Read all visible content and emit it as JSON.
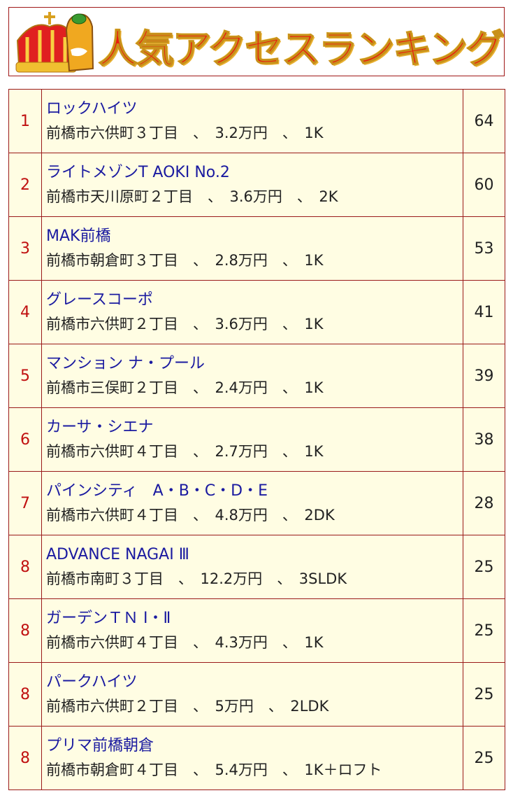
{
  "banner": {
    "title": "人気アクセスランキング"
  },
  "colors": {
    "border": "#9a1a1a",
    "row_bg": "#fffde3",
    "rank": "#c01010",
    "name_link": "#1a1aa0"
  },
  "rows": [
    {
      "rank": "1",
      "name": "ロックハイツ",
      "address": "前橋市六供町３丁目",
      "price": "3.2万円",
      "layout": "1K",
      "count": "64"
    },
    {
      "rank": "2",
      "name": "ライトメゾンT AOKI No.2",
      "address": "前橋市天川原町２丁目",
      "price": "3.6万円",
      "layout": "2K",
      "count": "60"
    },
    {
      "rank": "3",
      "name": "MAK前橋",
      "address": "前橋市朝倉町３丁目",
      "price": "2.8万円",
      "layout": "1K",
      "count": "53"
    },
    {
      "rank": "4",
      "name": "グレースコーポ",
      "address": "前橋市六供町２丁目",
      "price": "3.6万円",
      "layout": "1K",
      "count": "41"
    },
    {
      "rank": "5",
      "name": "マンション ナ・プール",
      "address": "前橋市三俣町２丁目",
      "price": "2.4万円",
      "layout": "1K",
      "count": "39"
    },
    {
      "rank": "6",
      "name": "カーサ・シエナ",
      "address": "前橋市六供町４丁目",
      "price": "2.7万円",
      "layout": "1K",
      "count": "38"
    },
    {
      "rank": "7",
      "name": "パインシティ　A・B・C・D・E",
      "address": "前橋市六供町４丁目",
      "price": "4.8万円",
      "layout": "2DK",
      "count": "28"
    },
    {
      "rank": "8",
      "name": "ADVANCE NAGAI Ⅲ",
      "address": "前橋市南町３丁目",
      "price": "12.2万円",
      "layout": "3SLDK",
      "count": "25"
    },
    {
      "rank": "8",
      "name": "ガーデンＴＮ Ⅰ・Ⅱ",
      "address": "前橋市六供町４丁目",
      "price": "4.3万円",
      "layout": "1K",
      "count": "25"
    },
    {
      "rank": "8",
      "name": "パークハイツ",
      "address": "前橋市六供町２丁目",
      "price": "5万円",
      "layout": "2LDK",
      "count": "25"
    },
    {
      "rank": "8",
      "name": "プリマ前橋朝倉",
      "address": "前橋市朝倉町４丁目",
      "price": "5.4万円",
      "layout": "1K＋ロフト",
      "count": "25"
    }
  ]
}
